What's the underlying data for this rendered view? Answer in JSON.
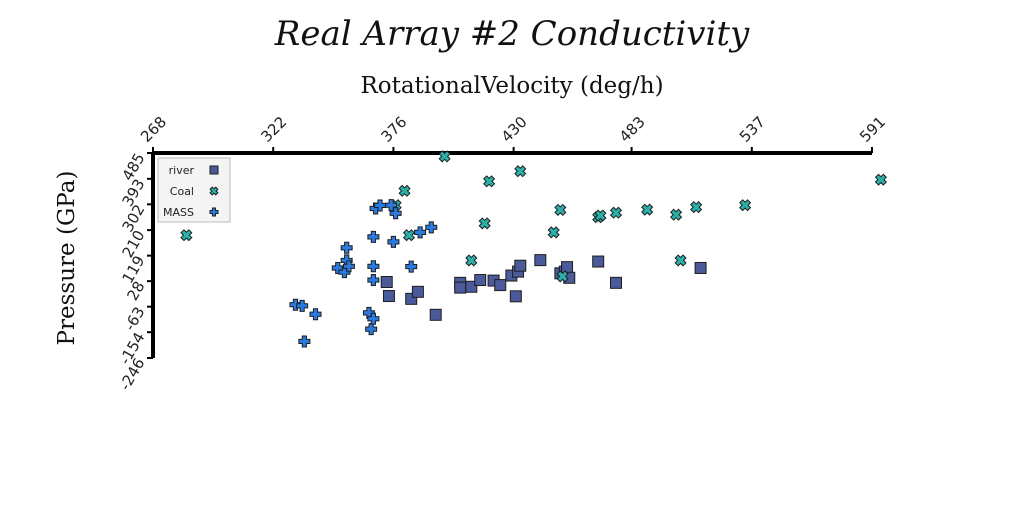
{
  "chart_data": {
    "type": "scatter",
    "title": "Real Array #2 Conductivity",
    "xlabel": "RotationalVelocity (deg/h)",
    "ylabel": "Pressure (GPa)",
    "x_axis_position": "top",
    "xlim": [
      268,
      591
    ],
    "ylim": [
      -246,
      485
    ],
    "x_ticks": [
      "268",
      "322",
      "376",
      "430",
      "483",
      "537",
      "591"
    ],
    "y_ticks": [
      "485",
      "393",
      "302",
      "210",
      "119",
      "28",
      "-63",
      "-154",
      "-246"
    ],
    "grid": false,
    "legend_position": "top-left",
    "series": [
      {
        "name": "river",
        "marker": "square",
        "color": "#4a5a9a",
        "points": [
          [
            373,
            25
          ],
          [
            374,
            -25
          ],
          [
            384,
            -35
          ],
          [
            387,
            -10
          ],
          [
            395,
            -92
          ],
          [
            406,
            22
          ],
          [
            406,
            5
          ],
          [
            411,
            8
          ],
          [
            415,
            32
          ],
          [
            421,
            30
          ],
          [
            424,
            14
          ],
          [
            429,
            48
          ],
          [
            431,
            -26
          ],
          [
            432,
            62
          ],
          [
            433,
            83
          ],
          [
            442,
            103
          ],
          [
            451,
            56
          ],
          [
            453,
            62
          ],
          [
            454,
            78
          ],
          [
            455,
            40
          ],
          [
            468,
            98
          ],
          [
            476,
            22
          ],
          [
            514,
            75
          ]
        ]
      },
      {
        "name": "Coal",
        "marker": "x",
        "color": "#2ab0a8",
        "points": [
          [
            283,
            192
          ],
          [
            377,
            299
          ],
          [
            381,
            350
          ],
          [
            383,
            192
          ],
          [
            399,
            473
          ],
          [
            411,
            102
          ],
          [
            417,
            234
          ],
          [
            419,
            384
          ],
          [
            433,
            420
          ],
          [
            448,
            202
          ],
          [
            451,
            282
          ],
          [
            452,
            45
          ],
          [
            468,
            256
          ],
          [
            469,
            262
          ],
          [
            476,
            272
          ],
          [
            490,
            283
          ],
          [
            503,
            265
          ],
          [
            505,
            102
          ],
          [
            512,
            292
          ],
          [
            534,
            299
          ],
          [
            595,
            390
          ]
        ]
      },
      {
        "name": "MASS",
        "marker": "plus",
        "color": "#2a7ae0",
        "points": [
          [
            332,
            -56
          ],
          [
            335,
            -60
          ],
          [
            336,
            -187
          ],
          [
            341,
            -90
          ],
          [
            351,
            75
          ],
          [
            354,
            60
          ],
          [
            355,
            102
          ],
          [
            355,
            147
          ],
          [
            356,
            81
          ],
          [
            365,
            -85
          ],
          [
            366,
            -143
          ],
          [
            367,
            -106
          ],
          [
            367,
            32
          ],
          [
            367,
            81
          ],
          [
            367,
            186
          ],
          [
            368,
            287
          ],
          [
            370,
            298
          ],
          [
            375,
            299
          ],
          [
            376,
            168
          ],
          [
            377,
            270
          ],
          [
            384,
            80
          ],
          [
            388,
            202
          ],
          [
            393,
            220
          ]
        ]
      }
    ]
  }
}
